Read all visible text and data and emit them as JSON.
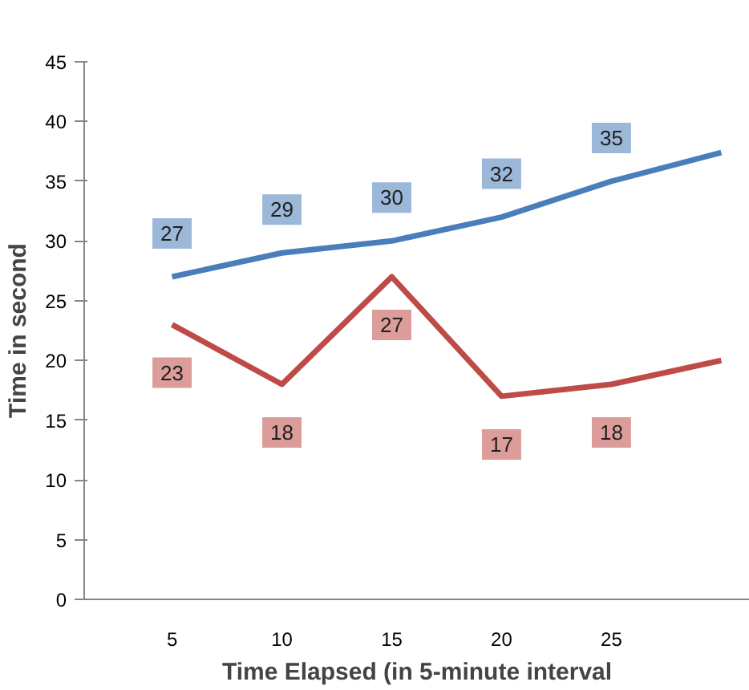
{
  "chart_data": {
    "type": "line",
    "xlabel": "Time Elapsed (in 5-minute interval",
    "ylabel": "Time in second",
    "x": [
      5,
      10,
      15,
      20,
      25,
      30
    ],
    "xlim": [
      1,
      31.3
    ],
    "xticks": [
      5,
      10,
      15,
      20,
      25
    ],
    "ylim": [
      0,
      45
    ],
    "yticks": [
      0,
      5,
      10,
      15,
      20,
      25,
      30,
      35,
      40,
      45
    ],
    "series": [
      {
        "color": "#4a7ebb",
        "values": [
          27,
          29,
          30,
          32,
          35,
          37.4
        ],
        "value_labels": [
          "27",
          "29",
          "30",
          "32",
          "35",
          null
        ]
      },
      {
        "color": "#be4b48",
        "values": [
          23,
          18,
          27,
          17,
          18,
          20
        ],
        "value_labels": [
          "23",
          "18",
          "27",
          "17",
          "18",
          null
        ]
      }
    ],
    "grid": false,
    "marker": "none",
    "line_style": "solid"
  }
}
